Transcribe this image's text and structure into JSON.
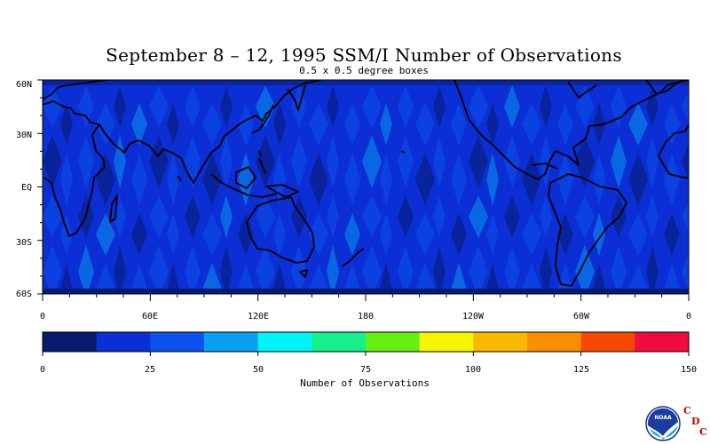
{
  "title": "September 8 – 12, 1995 SSM/I Number of Observations",
  "subtitle": "0.5 x 0.5 degree boxes",
  "map": {
    "lat_labels": [
      "60N",
      "30N",
      "EQ",
      "30S",
      "60S"
    ],
    "lon_labels": [
      "0",
      "60E",
      "120E",
      "180",
      "120W",
      "60W",
      "0"
    ],
    "extent": {
      "lon": [
        0,
        360
      ],
      "lat": [
        -60,
        60
      ]
    }
  },
  "colorbar": {
    "title": "Number of Observations",
    "tick_labels": [
      "0",
      "25",
      "50",
      "75",
      "100",
      "125",
      "150"
    ],
    "range": [
      0,
      150
    ],
    "colors": [
      "#0a1a6e",
      "#0a2fd6",
      "#0b52ee",
      "#0aa0f2",
      "#00f4f5",
      "#17f08a",
      "#66f012",
      "#f5f500",
      "#f8b800",
      "#f88e00",
      "#f84800",
      "#f00c3c"
    ]
  },
  "colors": {
    "map_background": "#0b2fd4",
    "land_outline": "#000000"
  },
  "logo": {
    "name": "NOAA",
    "letters": [
      "C",
      "D",
      "C"
    ]
  }
}
